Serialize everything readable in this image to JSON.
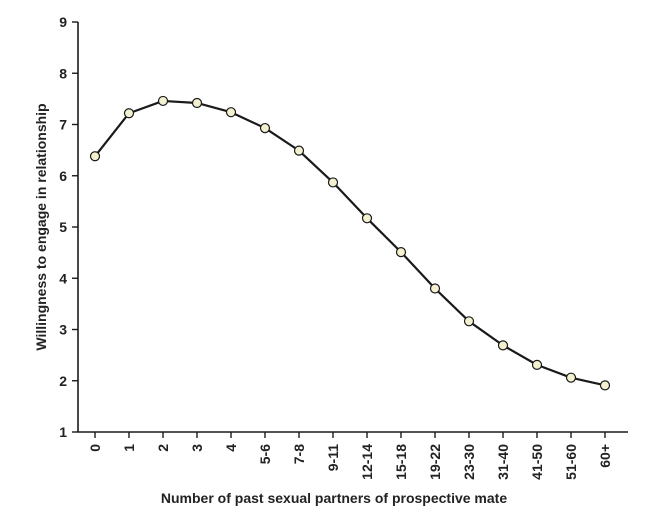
{
  "chart_data": {
    "type": "line",
    "title": "",
    "xlabel": "Number of past sexual partners of prospective mate",
    "ylabel": "Willingness to engage in relationship",
    "categories": [
      "0",
      "1",
      "2",
      "3",
      "4",
      "5-6",
      "7-8",
      "9-11",
      "12-14",
      "15-18",
      "19-22",
      "23-30",
      "31-40",
      "41-50",
      "51-60",
      "60+"
    ],
    "series": [
      {
        "values": [
          6.38,
          7.22,
          7.46,
          7.42,
          7.24,
          6.93,
          6.49,
          5.87,
          5.17,
          4.51,
          3.8,
          3.16,
          2.69,
          2.31,
          2.06,
          1.91
        ]
      }
    ],
    "ylim": [
      1,
      9
    ],
    "yticks": [
      1,
      2,
      3,
      4,
      5,
      6,
      7,
      8,
      9
    ],
    "grid": false,
    "legend": "none",
    "colors": {
      "line": "#1a1a1a",
      "marker_fill": "#f3f1cf",
      "marker_stroke": "#1a1a1a",
      "axis": "#1a1a1a"
    }
  }
}
